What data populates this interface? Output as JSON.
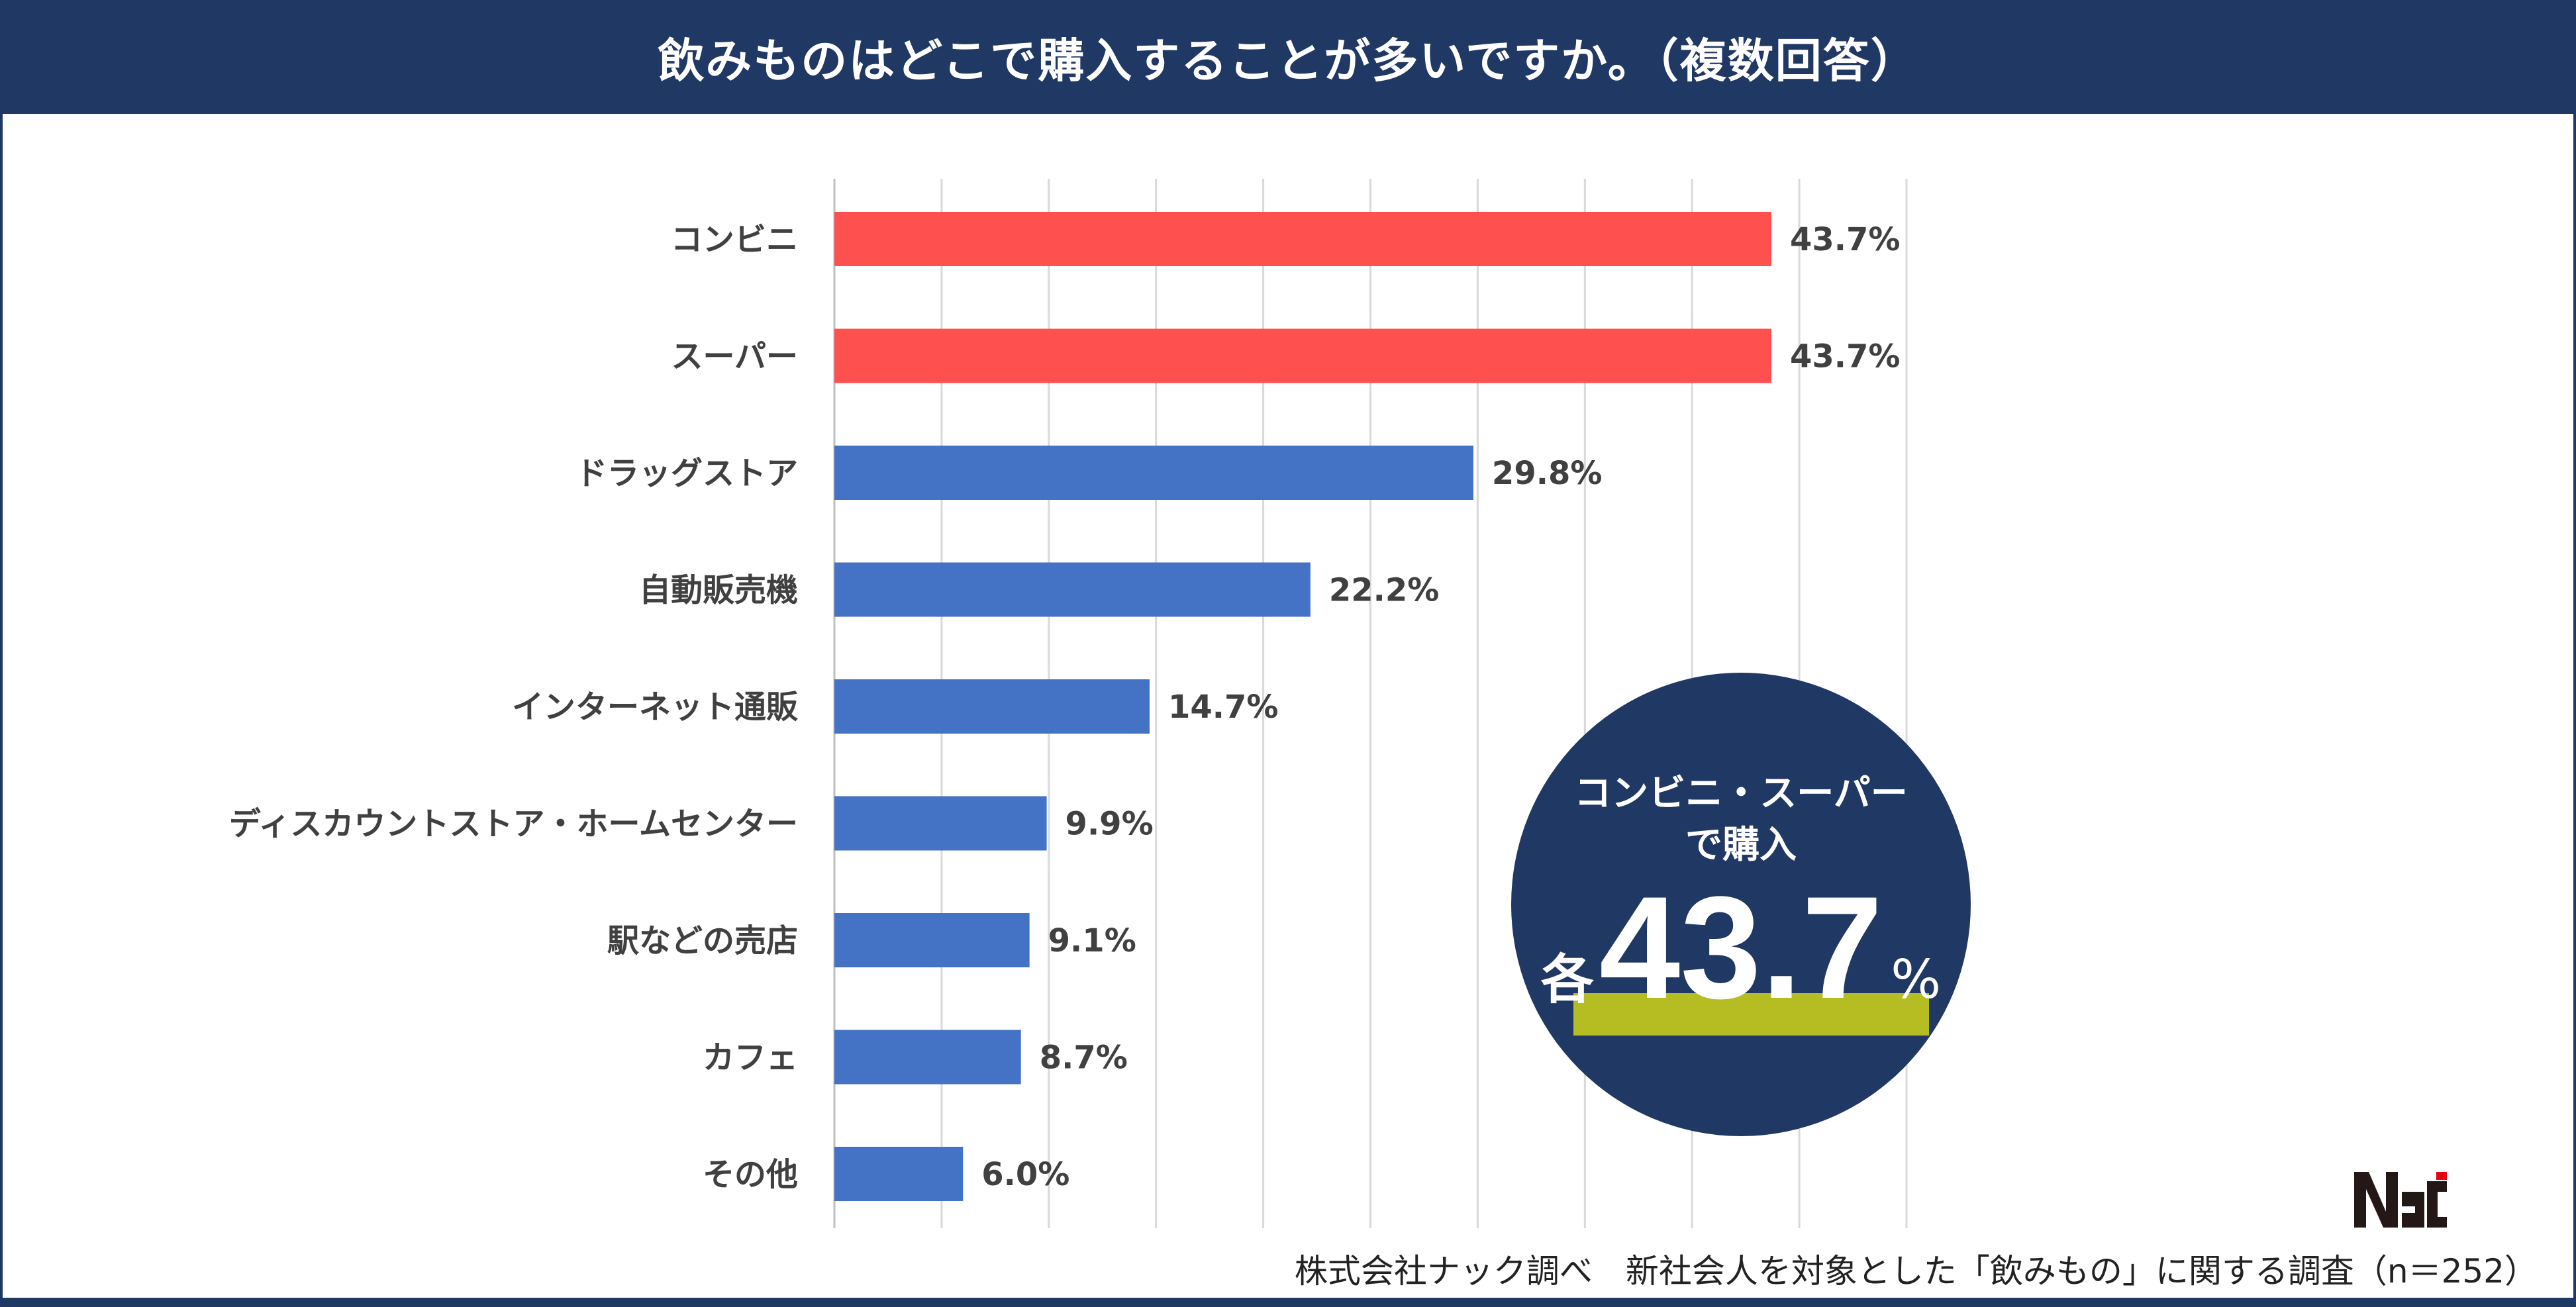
{
  "header": {
    "title": "飲みものはどこで購入することが多いですか。（複数回答）"
  },
  "chart_data": {
    "type": "bar",
    "orientation": "horizontal",
    "title": "飲みものはどこで購入することが多いですか。（複数回答）",
    "categories": [
      "コンビニ",
      "スーパー",
      "ドラッグストア",
      "自動販売機",
      "インターネット通販",
      "ディスカウントストア・ホームセンター",
      "駅などの売店",
      "カフェ",
      "その他"
    ],
    "values": [
      43.7,
      43.7,
      29.8,
      22.2,
      14.7,
      9.9,
      9.1,
      8.7,
      6.0
    ],
    "value_labels": [
      "43.7%",
      "43.7%",
      "29.8%",
      "22.2%",
      "14.7%",
      "9.9%",
      "9.1%",
      "8.7%",
      "6.0%"
    ],
    "unit": "%",
    "xlim": [
      0,
      50
    ],
    "grid_step": 5,
    "grid": true,
    "xlabel": "",
    "ylabel": "",
    "highlight_colors": [
      "#ff5050",
      "#ff5050",
      "#4472c4",
      "#4472c4",
      "#4472c4",
      "#4472c4",
      "#4472c4",
      "#4472c4",
      "#4472c4"
    ]
  },
  "badge": {
    "line1": "コンビニ・スーパー",
    "line2": "で購入",
    "prefix": "各",
    "value": "43.7",
    "suffix": "%"
  },
  "footer": {
    "source": "株式会社ナック調べ　新社会人を対象とした「飲みもの」に関する調査（n＝252）"
  },
  "logo": {
    "text": "NAC"
  },
  "colors": {
    "navy": "#203864",
    "red": "#ff5050",
    "blue": "#4472c4",
    "accent": "#b5bd22"
  }
}
